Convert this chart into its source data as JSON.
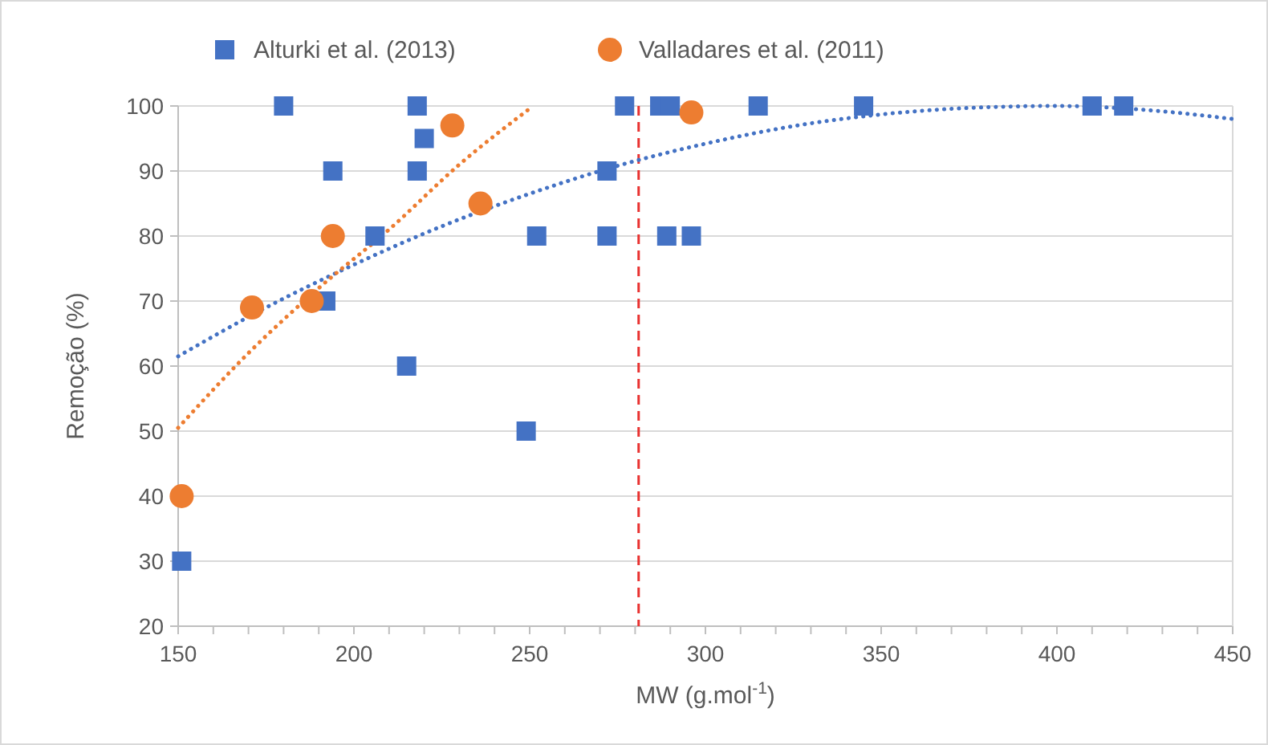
{
  "chart_data": {
    "type": "scatter",
    "xlabel": "MW (g.mol$^{-1}$)",
    "ylabel": "Remoção (%)",
    "xlim": [
      150,
      450
    ],
    "ylim": [
      20,
      100
    ],
    "xticks": [
      150,
      {
        "value": 160,
        "label": null
      },
      {
        "value": 170,
        "label": null
      },
      {
        "value": 180,
        "label": null
      },
      {
        "value": 190,
        "label": null
      },
      200,
      {
        "value": 210,
        "label": null
      },
      {
        "value": 220,
        "label": null
      },
      {
        "value": 230,
        "label": null
      },
      {
        "value": 240,
        "label": null
      },
      250,
      {
        "value": 260,
        "label": null
      },
      {
        "value": 270,
        "label": null
      },
      {
        "value": 280,
        "label": null
      },
      {
        "value": 290,
        "label": null
      },
      300,
      {
        "value": 310,
        "label": null
      },
      {
        "value": 320,
        "label": null
      },
      {
        "value": 330,
        "label": null
      },
      {
        "value": 340,
        "label": null
      },
      350,
      {
        "value": 360,
        "label": null
      },
      {
        "value": 370,
        "label": null
      },
      {
        "value": 380,
        "label": null
      },
      {
        "value": 390,
        "label": null
      },
      400,
      {
        "value": 410,
        "label": null
      },
      {
        "value": 420,
        "label": null
      },
      {
        "value": 430,
        "label": null
      },
      {
        "value": 440,
        "label": null
      },
      450
    ],
    "yticks": [
      20,
      30,
      40,
      50,
      60,
      70,
      80,
      90,
      100
    ],
    "grid": "y",
    "legend": "top",
    "ref_lines": [
      {
        "axis": "x",
        "value": 281,
        "color": "#e8312f",
        "line_style": "dashed"
      }
    ],
    "series": [
      {
        "type": "line",
        "color": "#4472c4",
        "marker": "none",
        "line_style": "dotted",
        "x": [
          150,
          175,
          200,
          225,
          250,
          275,
          300,
          325,
          350,
          375,
          400,
          425,
          450
        ],
        "values": [
          61.5,
          69,
          75.6,
          81.5,
          86.5,
          90.8,
          94.2,
          96.9,
          98.7,
          99.7,
          100,
          99.4,
          98
        ]
      },
      {
        "type": "line",
        "color": "#ed7d31",
        "marker": "none",
        "line_style": "dotted",
        "x": [
          150,
          170,
          190,
          210,
          230,
          251
        ],
        "values": [
          50.5,
          62,
          72,
          81,
          91,
          100
        ]
      },
      {
        "name": "Alturki et al. (2013)",
        "type": "scatter",
        "marker": "square",
        "color": "#4472c4",
        "x": [
          151,
          180,
          218,
          220,
          194,
          218,
          206,
          192,
          215,
          249,
          252,
          272,
          272,
          277,
          287,
          290,
          289,
          296,
          315,
          345,
          410,
          419
        ],
        "values": [
          30,
          100,
          100,
          95,
          90,
          90,
          80,
          70,
          60,
          50,
          80,
          90,
          80,
          100,
          100,
          100,
          80,
          80,
          100,
          100,
          100,
          100
        ]
      },
      {
        "name": "Valladares et al. (2011)",
        "type": "scatter",
        "marker": "circle",
        "color": "#ed7d31",
        "x": [
          151,
          171,
          188,
          194,
          228,
          236,
          296
        ],
        "values": [
          40,
          69,
          70,
          80,
          97,
          85,
          99
        ]
      }
    ]
  }
}
